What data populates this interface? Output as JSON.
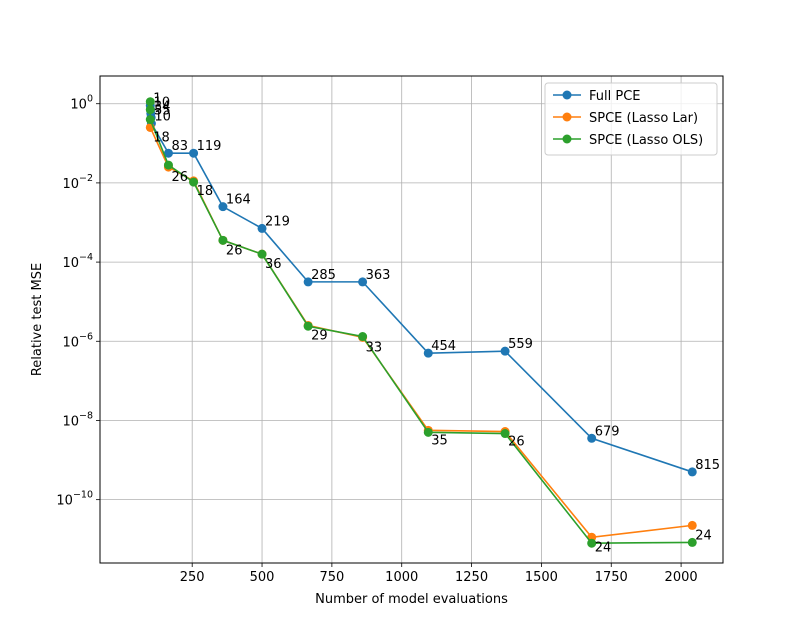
{
  "chart_data": {
    "type": "line",
    "xlabel": "Number of model evaluations",
    "ylabel": "Relative test MSE",
    "xlim": [
      -80,
      2150
    ],
    "ylim_log10": [
      -11.6,
      0.7
    ],
    "yscale": "log",
    "grid": true,
    "legend_position": "upper-right",
    "x_ticks": [
      250,
      500,
      750,
      1000,
      1250,
      1500,
      1750,
      2000
    ],
    "x_tick_labels": [
      "250",
      "500",
      "750",
      "1000",
      "1250",
      "1500",
      "1750",
      "2000"
    ],
    "y_ticks_log10": [
      0,
      -2,
      -4,
      -6,
      -8,
      -10
    ],
    "y_tick_labels": [
      {
        "base": "10",
        "exp": "0"
      },
      {
        "base": "10",
        "exp": "−2"
      },
      {
        "base": "10",
        "exp": "−4"
      },
      {
        "base": "10",
        "exp": "−6"
      },
      {
        "base": "10",
        "exp": "−8"
      },
      {
        "base": "10",
        "exp": "−10"
      }
    ],
    "series": [
      {
        "name": "Full PCE",
        "color": "#1f77b4",
        "points": [
          {
            "x": 100,
            "log10y": -0.05,
            "label": "1"
          },
          {
            "x": 101,
            "log10y": -0.15,
            "label": "10"
          },
          {
            "x": 102,
            "log10y": -0.25,
            "label": "34"
          },
          {
            "x": 103,
            "log10y": -0.35,
            "label": "55"
          },
          {
            "x": 104,
            "log10y": -0.5,
            "label": "10"
          },
          {
            "x": 165,
            "log10y": -1.25,
            "label": "83"
          },
          {
            "x": 255,
            "log10y": -1.25,
            "label": "119"
          },
          {
            "x": 360,
            "log10y": -2.6,
            "label": "164"
          },
          {
            "x": 500,
            "log10y": -3.15,
            "label": "219"
          },
          {
            "x": 665,
            "log10y": -4.5,
            "label": "285"
          },
          {
            "x": 860,
            "log10y": -4.5,
            "label": "363"
          },
          {
            "x": 1095,
            "log10y": -6.3,
            "label": "454"
          },
          {
            "x": 1370,
            "log10y": -6.25,
            "label": "559"
          },
          {
            "x": 1680,
            "log10y": -8.45,
            "label": "679"
          },
          {
            "x": 2040,
            "log10y": -9.3,
            "label": "815"
          }
        ]
      },
      {
        "name": "SPCE (Lasso Lar)",
        "color": "#ff7f0e",
        "points": [
          {
            "x": 100,
            "log10y": -0.6,
            "label": "18"
          },
          {
            "x": 165,
            "log10y": -1.6,
            "label": "26"
          },
          {
            "x": 255,
            "log10y": -1.95,
            "label": "18"
          },
          {
            "x": 360,
            "log10y": -3.45,
            "label": "26"
          },
          {
            "x": 500,
            "log10y": -3.8,
            "label": "36"
          },
          {
            "x": 665,
            "log10y": -5.6,
            "label": "29"
          },
          {
            "x": 860,
            "log10y": -5.9,
            "label": "33"
          },
          {
            "x": 1095,
            "log10y": -8.25,
            "label": "35"
          },
          {
            "x": 1370,
            "log10y": -8.28,
            "label": "26"
          },
          {
            "x": 1680,
            "log10y": -10.95,
            "label": "24"
          },
          {
            "x": 2040,
            "log10y": -10.65,
            "label": "24"
          }
        ]
      },
      {
        "name": "SPCE (Lasso OLS)",
        "color": "#2ca02c",
        "points": [
          {
            "x": 100,
            "log10y": 0.05
          },
          {
            "x": 100,
            "log10y": -0.15
          },
          {
            "x": 100,
            "log10y": -0.4
          },
          {
            "x": 165,
            "log10y": -1.55
          },
          {
            "x": 255,
            "log10y": -1.98
          },
          {
            "x": 360,
            "log10y": -3.45
          },
          {
            "x": 500,
            "log10y": -3.8
          },
          {
            "x": 665,
            "log10y": -5.62
          },
          {
            "x": 860,
            "log10y": -5.88
          },
          {
            "x": 1095,
            "log10y": -8.3
          },
          {
            "x": 1370,
            "log10y": -8.33
          },
          {
            "x": 1680,
            "log10y": -11.1
          },
          {
            "x": 2040,
            "log10y": -11.08
          }
        ]
      }
    ]
  }
}
